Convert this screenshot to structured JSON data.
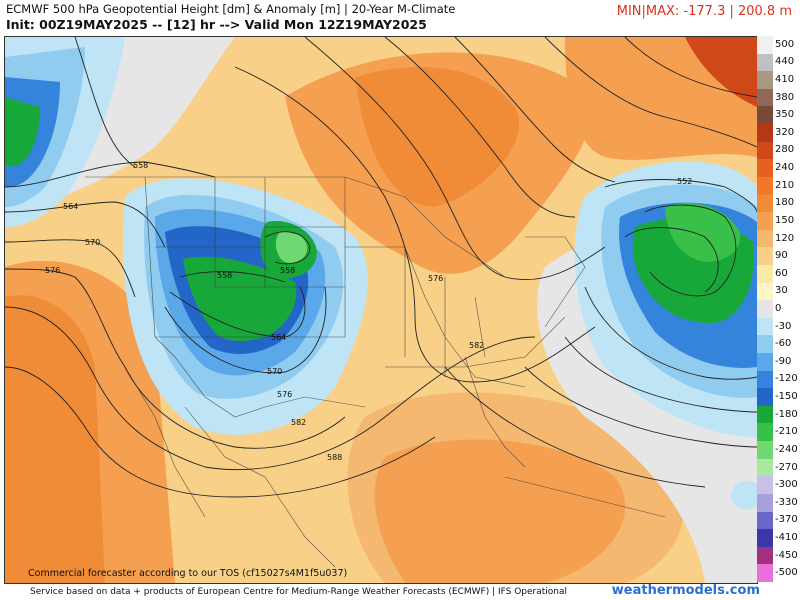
{
  "header": {
    "title": "ECMWF 500 hPa Geopotential Height [dm] & Anomaly [m] | 20-Year M-Climate",
    "init": "Init: 00Z19MAY2025 -- [12] hr --> Valid Mon 12Z19MAY2025",
    "minmax": "MIN|MAX: -177.3 | 200.8 m"
  },
  "colorbar": {
    "labels": [
      "500",
      "440",
      "410",
      "380",
      "350",
      "320",
      "280",
      "240",
      "210",
      "180",
      "150",
      "120",
      "90",
      "60",
      "30",
      "0",
      "-30",
      "-60",
      "-90",
      "-120",
      "-150",
      "-180",
      "-210",
      "-240",
      "-270",
      "-300",
      "-330",
      "-370",
      "-410",
      "-450",
      "-500"
    ],
    "colors": [
      "#f0f0f0",
      "#c0c0c0",
      "#a89880",
      "#906858",
      "#7a4a38",
      "#b23818",
      "#d04818",
      "#e86020",
      "#f07828",
      "#f08c38",
      "#f4a050",
      "#f4b870",
      "#f8d088",
      "#faeaa8",
      "#fef6c8",
      "#e6e6e6",
      "#bfe4f6",
      "#90ccf0",
      "#5aa8ea",
      "#3484dc",
      "#2466c8",
      "#18a83a",
      "#38c048",
      "#70d870",
      "#a8e8a0",
      "#c8c0e8",
      "#a8a0dc",
      "#6868c8",
      "#3838a8",
      "#a03080",
      "#e870d8"
    ]
  },
  "contour_labels": [
    {
      "id": "558-nw",
      "text": "558"
    },
    {
      "id": "564-w",
      "text": "564"
    },
    {
      "id": "570-w",
      "text": "570"
    },
    {
      "id": "576-w",
      "text": "576"
    },
    {
      "id": "558-low-w",
      "text": "558"
    },
    {
      "id": "558-low-e",
      "text": "558"
    },
    {
      "id": "564-s",
      "text": "564"
    },
    {
      "id": "570-s",
      "text": "570"
    },
    {
      "id": "576-s",
      "text": "576"
    },
    {
      "id": "582-s",
      "text": "582"
    },
    {
      "id": "576-c",
      "text": "576"
    },
    {
      "id": "582-c",
      "text": "582"
    },
    {
      "id": "588-mx",
      "text": "588"
    },
    {
      "id": "552-ne",
      "text": "552"
    }
  ],
  "footer": {
    "tos": "Commercial forecaster according to our TOS (cf15027s4M1f5u037)",
    "credit": "Service based on data + products of European Centre for Medium-Range Weather Forecasts (ECMWF) | IFS Operational",
    "brand": "weathermodels.com"
  }
}
